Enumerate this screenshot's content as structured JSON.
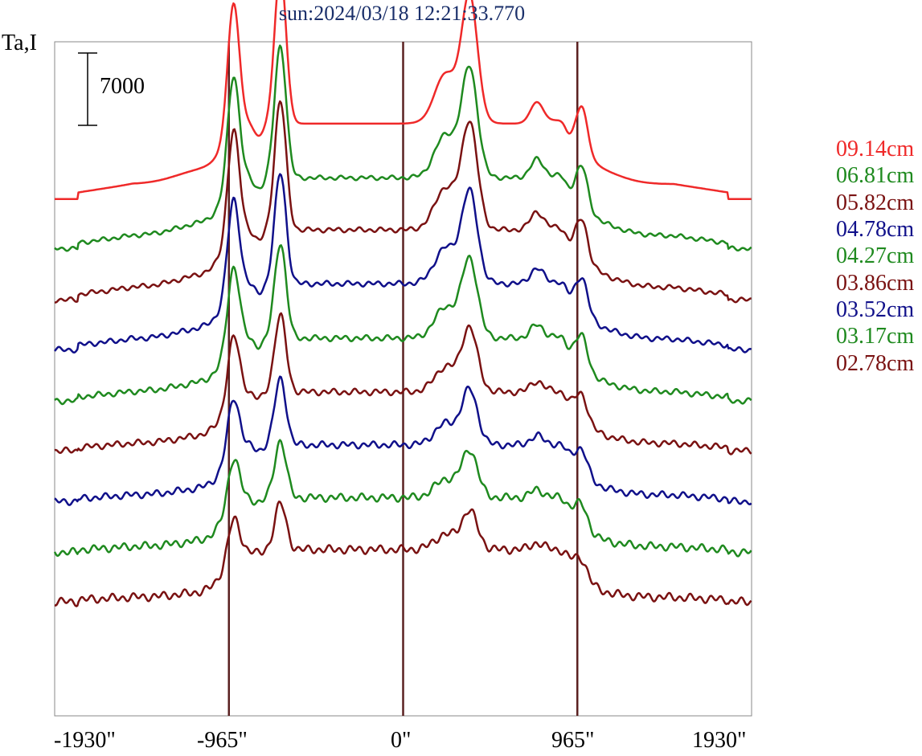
{
  "title": "sun:2024/03/18 12:21:33.770",
  "colors": {
    "red": "#ef2929",
    "green": "#1f8a1f",
    "darkred": "#7a1212",
    "blue": "#10108a",
    "frame": "#5a2020"
  },
  "chart_data": {
    "type": "line",
    "title": "sun:2024/03/18 12:21:33.770",
    "ylabel": "Ta,I",
    "scale_bar_label": "7000",
    "scale_bar_value": 7000,
    "xlim": [
      -1930,
      1930
    ],
    "x_ticks": [
      -1930,
      -965,
      0,
      965,
      1930
    ],
    "x_tick_labels": [
      "-1930\"",
      "-965\"",
      "0\"",
      "965\"",
      "1930\""
    ],
    "vertical_lines": [
      -965,
      0,
      965
    ],
    "grid": false,
    "legend_position": "right",
    "series": [
      {
        "name": "09.14cm",
        "color": "#ef2929",
        "offset": 57400,
        "scale": 1.0,
        "noise": 0.0
      },
      {
        "name": "06.81cm",
        "color": "#1f8a1f",
        "offset": 52400,
        "scale": 0.86,
        "noise": 0.9
      },
      {
        "name": "05.82cm",
        "color": "#7a1212",
        "offset": 47400,
        "scale": 0.84,
        "noise": 1.0
      },
      {
        "name": "04.78cm",
        "color": "#10108a",
        "offset": 42400,
        "scale": 0.72,
        "noise": 1.1
      },
      {
        "name": "04.27cm",
        "color": "#1f8a1f",
        "offset": 37300,
        "scale": 0.62,
        "noise": 1.2
      },
      {
        "name": "03.86cm",
        "color": "#7a1212",
        "offset": 32300,
        "scale": 0.5,
        "noise": 1.3
      },
      {
        "name": "03.52cm",
        "color": "#10108a",
        "offset": 27300,
        "scale": 0.43,
        "noise": 1.4
      },
      {
        "name": "03.17cm",
        "color": "#1f8a1f",
        "offset": 22300,
        "scale": 0.37,
        "noise": 1.6
      },
      {
        "name": "02.78cm",
        "color": "#7a1212",
        "offset": 17400,
        "scale": 0.3,
        "noise": 1.7
      }
    ]
  }
}
